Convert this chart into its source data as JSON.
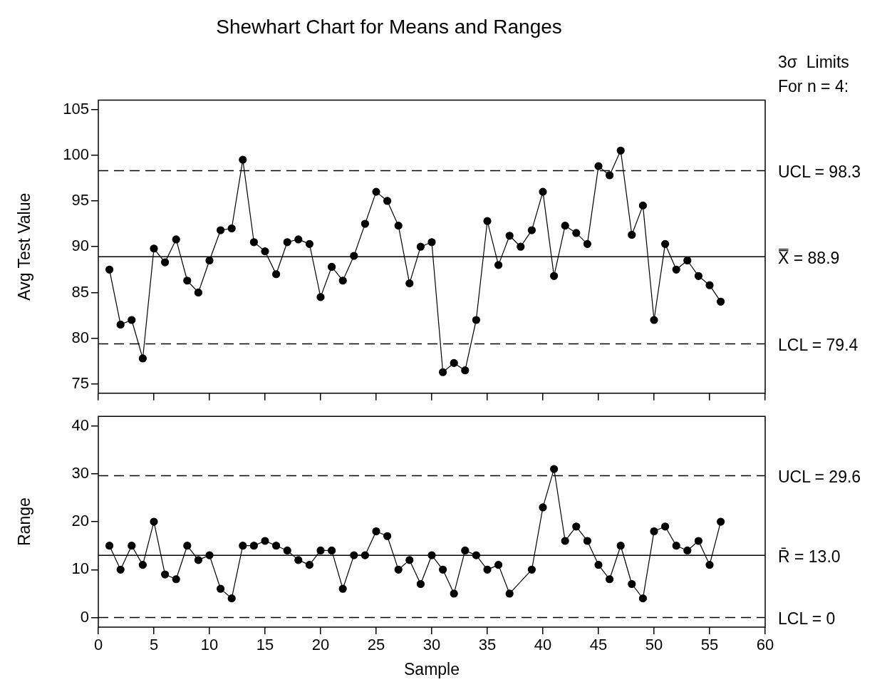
{
  "chart_data": [
    {
      "type": "line",
      "title": "Shewhart Chart for Means and Ranges",
      "ylabel": "Avg Test Value",
      "annotations": [
        "3σ  Limits",
        "For n = 4:"
      ],
      "x": [
        1,
        2,
        3,
        4,
        5,
        6,
        7,
        8,
        9,
        10,
        11,
        12,
        13,
        14,
        15,
        16,
        17,
        18,
        19,
        20,
        21,
        22,
        23,
        24,
        25,
        26,
        27,
        28,
        29,
        30,
        31,
        32,
        33,
        34,
        35,
        36,
        37,
        38,
        39,
        40,
        41,
        42,
        43,
        44,
        45,
        46,
        47,
        48,
        49,
        50,
        51,
        52,
        53,
        54,
        55,
        56
      ],
      "series": [
        {
          "color": "#000000",
          "values": [
            87.5,
            81.5,
            82,
            77.8,
            89.8,
            88.3,
            90.8,
            86.3,
            85,
            88.5,
            91.8,
            92,
            99.5,
            90.5,
            89.5,
            87,
            90.5,
            90.8,
            90.3,
            84.5,
            87.8,
            86.3,
            89,
            92.5,
            96,
            95,
            92.3,
            86,
            90,
            90.5,
            76.3,
            77.3,
            76.5,
            82,
            92.8,
            88,
            91.2,
            90,
            91.8,
            96,
            86.8,
            92.3,
            91.5,
            90.3,
            98.8,
            97.8,
            100.5,
            91.3,
            94.5,
            82,
            90.3,
            87.5,
            88.5,
            86.8,
            85.8,
            84
          ]
        }
      ],
      "xlim": [
        0,
        60
      ],
      "xticks": [
        0,
        5,
        10,
        15,
        20,
        25,
        30,
        35,
        40,
        45,
        50,
        55,
        60
      ],
      "ylim": [
        74,
        106
      ],
      "yticks": [
        75,
        80,
        85,
        90,
        95,
        100,
        105
      ],
      "ref_lines": [
        {
          "axis": "y",
          "value": 98.3,
          "label": "UCL = 98.3",
          "line_style": "dashed"
        },
        {
          "axis": "y",
          "value": 88.9,
          "label": "X̿ = 88.9",
          "line_style": "solid"
        },
        {
          "axis": "y",
          "value": 79.4,
          "label": "LCL = 79.4",
          "line_style": "dashed"
        }
      ],
      "grid": false,
      "legend": false,
      "marker": "circle",
      "line_style": "solid",
      "tick_labels": "y"
    },
    {
      "type": "line",
      "xlabel": "Sample",
      "ylabel": "Range",
      "x": [
        1,
        2,
        3,
        4,
        5,
        6,
        7,
        8,
        9,
        10,
        11,
        12,
        13,
        14,
        15,
        16,
        17,
        18,
        19,
        20,
        21,
        22,
        23,
        24,
        25,
        26,
        27,
        28,
        29,
        30,
        31,
        32,
        33,
        34,
        35,
        36,
        37,
        38,
        39,
        40,
        41,
        42,
        43,
        44,
        45,
        46,
        47,
        48,
        49,
        50,
        51,
        52,
        53,
        54,
        55,
        56
      ],
      "series": [
        {
          "color": "#000000",
          "values": [
            15,
            10,
            15,
            11,
            20,
            9,
            8,
            15,
            12,
            13,
            6,
            4,
            15,
            15,
            16,
            15,
            14,
            12,
            11,
            14,
            14,
            6,
            13,
            13,
            18,
            17,
            10,
            12,
            7,
            13,
            10,
            5,
            14,
            13,
            10,
            11,
            5,
            null,
            10,
            23,
            31,
            16,
            19,
            16,
            11,
            8,
            15,
            7,
            4,
            18,
            19,
            15,
            14,
            16,
            11,
            20
          ]
        }
      ],
      "xlim": [
        0,
        60
      ],
      "xticks": [
        0,
        5,
        10,
        15,
        20,
        25,
        30,
        35,
        40,
        45,
        50,
        55,
        60
      ],
      "ylim": [
        -2,
        42
      ],
      "yticks": [
        0,
        10,
        20,
        30,
        40
      ],
      "ref_lines": [
        {
          "axis": "y",
          "value": 29.6,
          "label": "UCL = 29.6",
          "line_style": "dashed"
        },
        {
          "axis": "y",
          "value": 13.0,
          "label": "R̄ = 13.0",
          "line_style": "solid"
        },
        {
          "axis": "y",
          "value": 0,
          "label": "LCL = 0",
          "line_style": "dashed"
        }
      ],
      "grid": false,
      "legend": false,
      "marker": "circle",
      "line_style": "solid"
    }
  ]
}
